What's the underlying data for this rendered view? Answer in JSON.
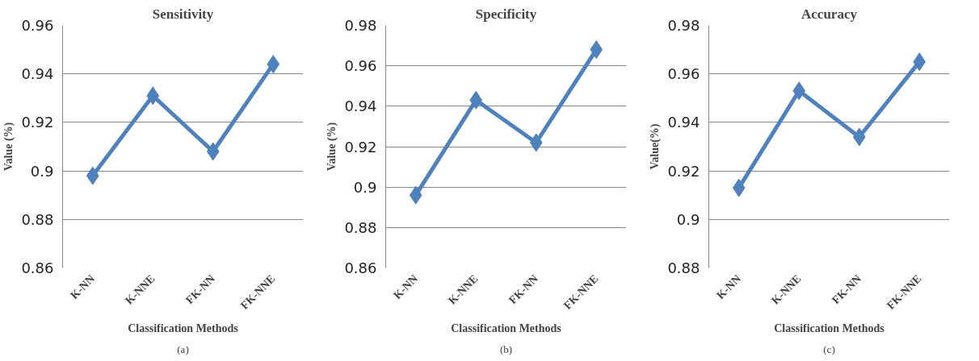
{
  "chart_data": [
    {
      "type": "line",
      "title": "Sensitivity",
      "xlabel": "Classification Methods",
      "ylabel": "Value (%)",
      "categories": [
        "K-NN",
        "K-NNE",
        "FK-NN",
        "FK-NNE"
      ],
      "series": [
        {
          "color": "#4f81bd",
          "values": [
            0.898,
            0.931,
            0.908,
            0.944
          ]
        }
      ],
      "ylim": [
        0.86,
        0.96
      ],
      "yticks": [
        0.86,
        0.88,
        0.9,
        0.92,
        0.94,
        0.96
      ],
      "grid": "y",
      "marker": "diamond",
      "annotations": [
        "(a)"
      ]
    },
    {
      "type": "line",
      "title": "Specificity",
      "xlabel": "Classification Methods",
      "ylabel": "Value (%)",
      "categories": [
        "K-NN",
        "K-NNE",
        "FK-NN",
        "FK-NNE"
      ],
      "series": [
        {
          "color": "#4f81bd",
          "values": [
            0.896,
            0.943,
            0.922,
            0.968
          ]
        }
      ],
      "ylim": [
        0.86,
        0.98
      ],
      "yticks": [
        0.86,
        0.88,
        0.9,
        0.92,
        0.94,
        0.96,
        0.98
      ],
      "grid": "y",
      "marker": "diamond",
      "annotations": [
        "(b)"
      ]
    },
    {
      "type": "line",
      "title": "Accuracy",
      "xlabel": "Classification Methods",
      "ylabel": "Value(%)",
      "categories": [
        "K-NN",
        "K-NNE",
        "FK-NN",
        "FK-NNE"
      ],
      "series": [
        {
          "color": "#4f81bd",
          "values": [
            0.913,
            0.953,
            0.934,
            0.965
          ]
        }
      ],
      "ylim": [
        0.88,
        0.98
      ],
      "yticks": [
        0.88,
        0.9,
        0.92,
        0.94,
        0.96,
        0.98
      ],
      "grid": "y",
      "marker": "diamond",
      "annotations": [
        "(c)"
      ]
    }
  ]
}
